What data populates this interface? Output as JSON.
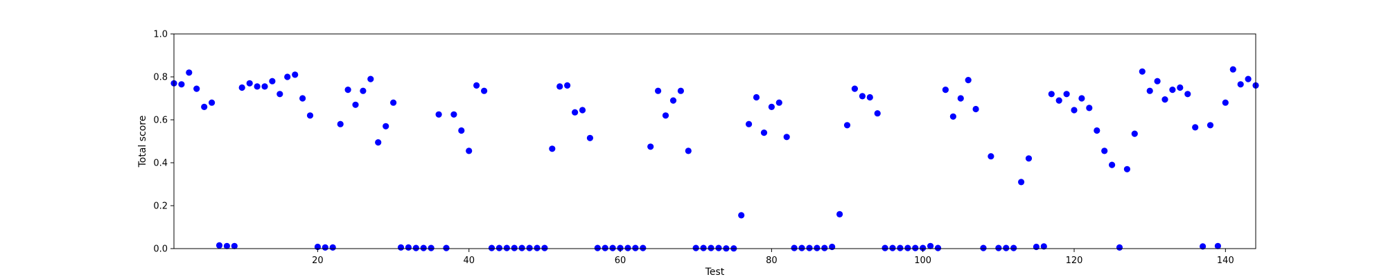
{
  "chart_data": {
    "type": "scatter",
    "xlabel": "Test",
    "ylabel": "Total score",
    "xlim": [
      1,
      144
    ],
    "ylim": [
      0,
      1.0
    ],
    "x_ticks": [
      20,
      40,
      60,
      80,
      100,
      120,
      140
    ],
    "y_ticks": [
      "0.0",
      "0.2",
      "0.4",
      "0.6",
      "0.8",
      "1.0"
    ],
    "grid": false,
    "point_color": "#0000ff",
    "series": [
      {
        "x": [
          1,
          2,
          3,
          4,
          5,
          6,
          7,
          8,
          9,
          10,
          11,
          12,
          13,
          14,
          15,
          16,
          17,
          18,
          19,
          20,
          21,
          22,
          23,
          24,
          25,
          26,
          27,
          28,
          29,
          30,
          31,
          32,
          33,
          34,
          35,
          36,
          37,
          38,
          39,
          40,
          41,
          42,
          43,
          44,
          45,
          46,
          47,
          48,
          49,
          50,
          51,
          52,
          53,
          54,
          55,
          56,
          57,
          58,
          59,
          60,
          61,
          62,
          63,
          64,
          65,
          66,
          67,
          68,
          69,
          70,
          71,
          72,
          73,
          74,
          75,
          76,
          77,
          78,
          79,
          80,
          81,
          82,
          83,
          84,
          85,
          86,
          87,
          88,
          89,
          90,
          91,
          92,
          93,
          94,
          95,
          96,
          97,
          98,
          99,
          100,
          101,
          102,
          103,
          104,
          105,
          106,
          107,
          108,
          109,
          110,
          111,
          112,
          113,
          114,
          115,
          116,
          117,
          118,
          119,
          120,
          121,
          122,
          123,
          124,
          125,
          126,
          127,
          128,
          129,
          130,
          131,
          132,
          133,
          134,
          135,
          136,
          137,
          138,
          139,
          140,
          141,
          142,
          143,
          144
        ],
        "y": [
          0.77,
          0.765,
          0.82,
          0.745,
          0.66,
          0.68,
          0.015,
          0.012,
          0.012,
          0.75,
          0.77,
          0.755,
          0.755,
          0.78,
          0.72,
          0.8,
          0.81,
          0.7,
          0.62,
          0.008,
          0.005,
          0.005,
          0.58,
          0.74,
          0.67,
          0.735,
          0.79,
          0.495,
          0.57,
          0.68,
          0.005,
          0.005,
          0.003,
          0.003,
          0.003,
          0.625,
          0.003,
          0.625,
          0.55,
          0.455,
          0.76,
          0.735,
          0.003,
          0.003,
          0.003,
          0.003,
          0.003,
          0.003,
          0.003,
          0.003,
          0.465,
          0.755,
          0.76,
          0.635,
          0.645,
          0.515,
          0.003,
          0.003,
          0.003,
          0.003,
          0.003,
          0.003,
          0.003,
          0.475,
          0.735,
          0.62,
          0.69,
          0.735,
          0.455,
          0.003,
          0.003,
          0.003,
          0.003,
          0.001,
          0.001,
          0.155,
          0.58,
          0.705,
          0.54,
          0.66,
          0.68,
          0.52,
          0.003,
          0.003,
          0.003,
          0.003,
          0.003,
          0.008,
          0.16,
          0.575,
          0.745,
          0.71,
          0.705,
          0.63,
          0.003,
          0.003,
          0.003,
          0.003,
          0.003,
          0.003,
          0.012,
          0.003,
          0.74,
          0.615,
          0.7,
          0.785,
          0.65,
          0.003,
          0.43,
          0.003,
          0.003,
          0.003,
          0.31,
          0.42,
          0.008,
          0.01,
          0.72,
          0.69,
          0.72,
          0.645,
          0.7,
          0.655,
          0.55,
          0.455,
          0.39,
          0.005,
          0.37,
          0.535,
          0.825,
          0.735,
          0.78,
          0.695,
          0.74,
          0.75,
          0.72,
          0.565,
          0.01,
          0.575,
          0.012,
          0.68,
          0.835,
          0.765,
          0.79,
          0.76
        ]
      }
    ]
  }
}
